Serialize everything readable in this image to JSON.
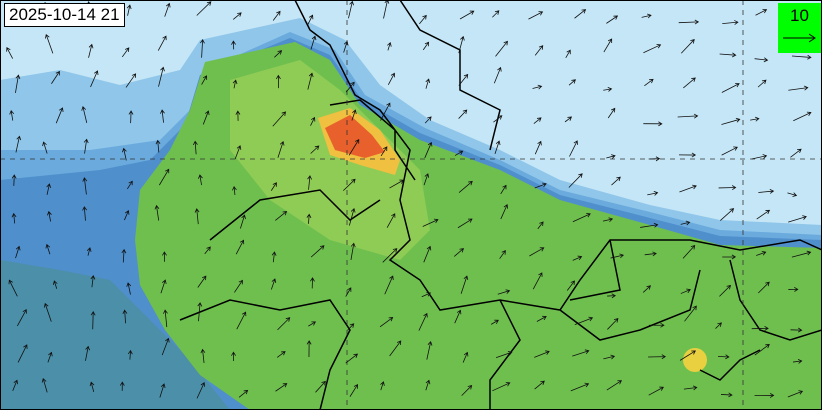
{
  "timestamp": "2025-10-14 21",
  "legend": {
    "reference_vector": "10",
    "color": "#00ff00",
    "icon": "arrow-right-icon"
  },
  "colors": {
    "ocean_light": "#c5e6f6",
    "band_mid": "#8fc6ea",
    "band_dark": "#4f8fcc",
    "land_green": "#6fbf4f",
    "hotspot": "#e8602c",
    "border": "#000000"
  }
}
